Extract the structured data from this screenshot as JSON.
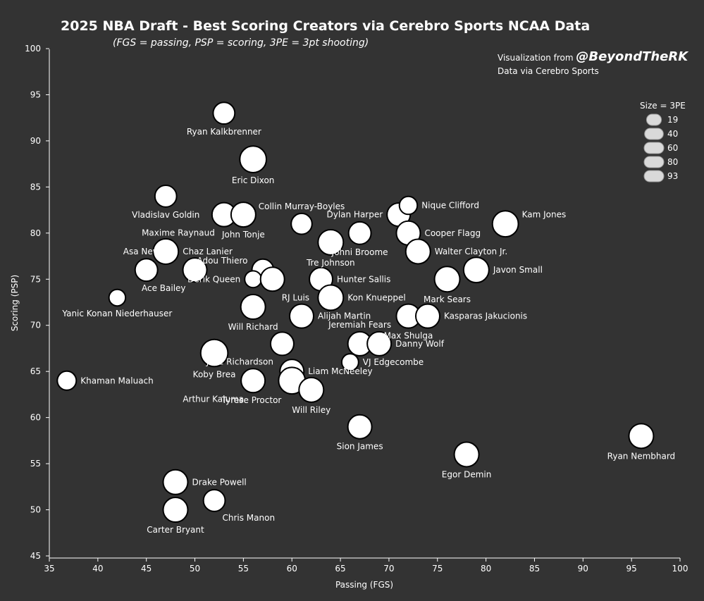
{
  "header": {
    "title": "2025 NBA Draft - Best Scoring Creators via Cerebro Sports NCAA Data",
    "subtitle": "(FGS = passing, PSP = scoring, 3PE = 3pt shooting)",
    "credit_prefix": "Visualization from ",
    "credit_handle": "@BeyondTheRK",
    "credit_source": "Data via Cerebro Sports"
  },
  "colors": {
    "background": "#333333",
    "point_fill": "#ffffff",
    "point_stroke": "#000000",
    "legend_fill": "#d9d9d9",
    "axis": "#ffffff"
  },
  "chart_data": {
    "type": "scatter",
    "xlabel": "Passing (FGS)",
    "ylabel": "Scoring (PSP)",
    "xlim": [
      35,
      100
    ],
    "ylim": [
      45,
      100
    ],
    "x_ticks": [
      "35",
      "40",
      "45",
      "50",
      "55",
      "60",
      "65",
      "70",
      "75",
      "80",
      "85",
      "90",
      "95",
      "100"
    ],
    "y_ticks": [
      "45",
      "50",
      "55",
      "60",
      "65",
      "70",
      "75",
      "80",
      "85",
      "90",
      "95",
      "100"
    ],
    "size_legend": {
      "title": "Size = 3PE",
      "values": [
        19,
        40,
        60,
        80,
        93
      ]
    },
    "points": [
      {
        "name": "Ryan Kalkbrenner",
        "x": 53,
        "y": 93,
        "size": 45,
        "label_pos": "below"
      },
      {
        "name": "Eric Dixon",
        "x": 56,
        "y": 88,
        "size": 80,
        "label_pos": "below"
      },
      {
        "name": "Vladislav Goldin",
        "x": 47,
        "y": 84,
        "size": 45,
        "label_pos": "below"
      },
      {
        "name": "Collin Murray-Boyles",
        "x": 61,
        "y": 81,
        "size": 40,
        "label_pos": "above"
      },
      {
        "name": "Maxime Raynaud",
        "x": 53,
        "y": 82,
        "size": 60,
        "label_pos": "below-left"
      },
      {
        "name": "John Tonje",
        "x": 55,
        "y": 82,
        "size": 65,
        "label_pos": "below"
      },
      {
        "name": "Dylan Harper",
        "x": 71,
        "y": 82,
        "size": 55,
        "label_pos": "left"
      },
      {
        "name": "Nique Clifford",
        "x": 72,
        "y": 83,
        "size": 25,
        "label_pos": "right"
      },
      {
        "name": "Kam Jones",
        "x": 82,
        "y": 81,
        "size": 75,
        "label_pos": "right-up"
      },
      {
        "name": "Johni Broome",
        "x": 67,
        "y": 80,
        "size": 50,
        "label_pos": "below"
      },
      {
        "name": "Cooper Flagg",
        "x": 72,
        "y": 80,
        "size": 60,
        "label_pos": "right"
      },
      {
        "name": "Asa Newell",
        "x": 45,
        "y": 76,
        "size": 50,
        "label_pos": "above"
      },
      {
        "name": "Chaz Lanier",
        "x": 47,
        "y": 78,
        "size": 70,
        "label_pos": "right"
      },
      {
        "name": "Tre Johnson",
        "x": 64,
        "y": 79,
        "size": 70,
        "label_pos": "below"
      },
      {
        "name": "Walter Clayton Jr.",
        "x": 73,
        "y": 78,
        "size": 65,
        "label_pos": "right"
      },
      {
        "name": "Javon Small",
        "x": 79,
        "y": 76,
        "size": 70,
        "label_pos": "right"
      },
      {
        "name": "Adou Thiero",
        "x": 57,
        "y": 76,
        "size": 45,
        "label_pos": "left-up"
      },
      {
        "name": "Ace Bailey",
        "x": 50,
        "y": 76,
        "size": 60,
        "label_pos": "below-left"
      },
      {
        "name": "Derik Queen",
        "x": 56,
        "y": 75,
        "size": 20,
        "label_pos": "left"
      },
      {
        "name": "RJ Luis",
        "x": 58,
        "y": 75,
        "size": 60,
        "label_pos": "below-right"
      },
      {
        "name": "Hunter Sallis",
        "x": 63,
        "y": 75,
        "size": 55,
        "label_pos": "right"
      },
      {
        "name": "Mark Sears",
        "x": 76,
        "y": 75,
        "size": 70,
        "label_pos": "below"
      },
      {
        "name": "Kon Knueppel",
        "x": 64,
        "y": 73,
        "size": 70,
        "label_pos": "right"
      },
      {
        "name": "Yanic Konan Niederhauser",
        "x": 42,
        "y": 73,
        "size": 19,
        "label_pos": "below"
      },
      {
        "name": "Will Richard",
        "x": 56,
        "y": 72,
        "size": 65,
        "label_pos": "below"
      },
      {
        "name": "Alijah Martin",
        "x": 61,
        "y": 71,
        "size": 60,
        "label_pos": "right"
      },
      {
        "name": "Max Shulga",
        "x": 72,
        "y": 71,
        "size": 60,
        "label_pos": "below"
      },
      {
        "name": "Kasparas Jakucionis",
        "x": 74,
        "y": 71,
        "size": 60,
        "label_pos": "right"
      },
      {
        "name": "Jeremiah Fears",
        "x": 67,
        "y": 68,
        "size": 60,
        "label_pos": "above"
      },
      {
        "name": "Danny Wolf",
        "x": 69,
        "y": 68,
        "size": 60,
        "label_pos": "right"
      },
      {
        "name": "Jase Richardson",
        "x": 59,
        "y": 68,
        "size": 55,
        "label_pos": "below-left"
      },
      {
        "name": "Koby Brea",
        "x": 52,
        "y": 67,
        "size": 85,
        "label_pos": "below"
      },
      {
        "name": "VJ Edgecombe",
        "x": 66,
        "y": 66,
        "size": 20,
        "label_pos": "right"
      },
      {
        "name": "Liam McNeeley",
        "x": 60,
        "y": 65,
        "size": 60,
        "label_pos": "right"
      },
      {
        "name": "Arthur Kaluma",
        "x": 56,
        "y": 64,
        "size": 60,
        "label_pos": "below-left"
      },
      {
        "name": "Tyrese Proctor",
        "x": 60,
        "y": 64,
        "size": 80,
        "label_pos": "below-left"
      },
      {
        "name": "Khaman Maluach",
        "x": 36.8,
        "y": 64,
        "size": 30,
        "label_pos": "right"
      },
      {
        "name": "Will Riley",
        "x": 62,
        "y": 63,
        "size": 65,
        "label_pos": "below"
      },
      {
        "name": "Sion James",
        "x": 67,
        "y": 59,
        "size": 60,
        "label_pos": "below"
      },
      {
        "name": "Ryan Nembhard",
        "x": 96,
        "y": 58,
        "size": 65,
        "label_pos": "below"
      },
      {
        "name": "Egor Demin",
        "x": 78,
        "y": 56,
        "size": 65,
        "label_pos": "below"
      },
      {
        "name": "Drake Powell",
        "x": 48,
        "y": 53,
        "size": 65,
        "label_pos": "right"
      },
      {
        "name": "Chris Manon",
        "x": 52,
        "y": 51,
        "size": 45,
        "label_pos": "below-right"
      },
      {
        "name": "Carter Bryant",
        "x": 48,
        "y": 50,
        "size": 65,
        "label_pos": "below"
      }
    ]
  }
}
